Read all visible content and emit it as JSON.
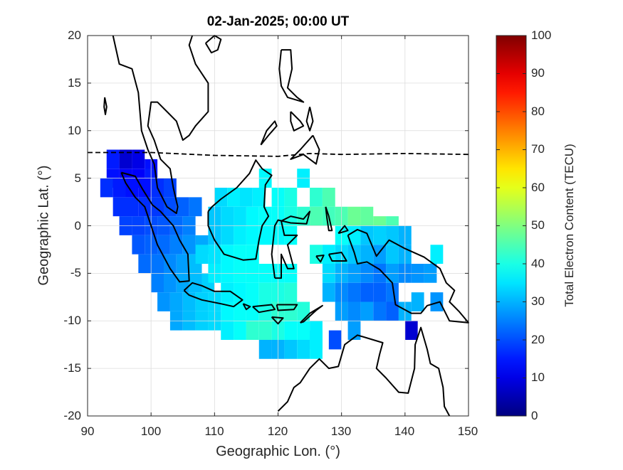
{
  "title": "02-Jan-2025; 00:00 UT",
  "xlabel": "Geographic Lon. (°)",
  "ylabel": "Geographic Lat. (°)",
  "colorbar": {
    "label": "Total Electron Content (TECU)",
    "ticks": [
      "0",
      "10",
      "20",
      "30",
      "40",
      "50",
      "60",
      "70",
      "80",
      "90",
      "100"
    ],
    "range": [
      0,
      100
    ],
    "colormap": "jet"
  },
  "x_ticks": [
    "90",
    "100",
    "110",
    "120",
    "130",
    "140",
    "150"
  ],
  "y_ticks": [
    "20",
    "15",
    "10",
    "5",
    "0",
    "-5",
    "-10",
    "-15",
    "-20"
  ],
  "map": {
    "lon_range": [
      90,
      150
    ],
    "lat_range": [
      -20,
      20
    ],
    "grid": true,
    "coastline_color": "#000000",
    "equator_line_style": "dashed"
  },
  "chart_data": {
    "type": "heatmap",
    "title": "02-Jan-2025; 00:00 UT",
    "xlabel": "Geographic Lon. (°)",
    "ylabel": "Geographic Lat. (°)",
    "xlim": [
      90,
      150
    ],
    "ylim": [
      -20,
      20
    ],
    "zlabel": "Total Electron Content (TECU)",
    "zlim": [
      0,
      100
    ],
    "cells": [
      [
        94,
        7,
        15
      ],
      [
        96,
        7,
        8
      ],
      [
        98,
        7,
        10
      ],
      [
        100,
        6,
        14
      ],
      [
        94,
        5,
        14
      ],
      [
        96,
        5,
        12
      ],
      [
        98,
        5,
        12
      ],
      [
        100,
        5,
        15
      ],
      [
        93,
        4,
        17
      ],
      [
        95,
        4,
        15
      ],
      [
        97,
        4,
        14
      ],
      [
        99,
        4,
        14
      ],
      [
        101,
        4,
        17
      ],
      [
        103,
        4,
        19
      ],
      [
        95,
        2,
        17
      ],
      [
        97,
        2,
        17
      ],
      [
        99,
        2,
        17
      ],
      [
        101,
        2,
        18
      ],
      [
        103,
        2,
        20
      ],
      [
        105,
        2,
        22
      ],
      [
        107,
        2,
        24
      ],
      [
        96,
        0,
        19
      ],
      [
        98,
        0,
        19
      ],
      [
        100,
        0,
        20
      ],
      [
        102,
        0,
        21
      ],
      [
        104,
        0,
        23
      ],
      [
        106,
        0,
        25
      ],
      [
        98,
        -2,
        21
      ],
      [
        100,
        -2,
        22
      ],
      [
        102,
        -2,
        23
      ],
      [
        104,
        -2,
        25
      ],
      [
        106,
        -2,
        27
      ],
      [
        108,
        -2,
        29
      ],
      [
        99,
        -4,
        23
      ],
      [
        101,
        -4,
        24
      ],
      [
        103,
        -4,
        26
      ],
      [
        105,
        -4,
        28
      ],
      [
        107,
        -4,
        31
      ],
      [
        101,
        -6,
        25
      ],
      [
        103,
        -6,
        27
      ],
      [
        105,
        -6,
        29
      ],
      [
        107,
        -6,
        31
      ],
      [
        109,
        -6,
        33
      ],
      [
        102,
        -8,
        27
      ],
      [
        104,
        -8,
        29
      ],
      [
        106,
        -8,
        31
      ],
      [
        108,
        -8,
        33
      ],
      [
        110,
        -8,
        34
      ],
      [
        104,
        -10,
        29
      ],
      [
        106,
        -10,
        31
      ],
      [
        108,
        -10,
        33
      ],
      [
        110,
        -10,
        34
      ],
      [
        111,
        3,
        34
      ],
      [
        113,
        3,
        36
      ],
      [
        115,
        3,
        35
      ],
      [
        117,
        3,
        36
      ],
      [
        118,
        5,
        37
      ],
      [
        120,
        3,
        38
      ],
      [
        122,
        3,
        40
      ],
      [
        110,
        1,
        32
      ],
      [
        112,
        1,
        34
      ],
      [
        114,
        1,
        35
      ],
      [
        116,
        1,
        37
      ],
      [
        118,
        1,
        38
      ],
      [
        120,
        1,
        38
      ],
      [
        122,
        1,
        40
      ],
      [
        124,
        1,
        42
      ],
      [
        110,
        -1,
        32
      ],
      [
        112,
        -1,
        34
      ],
      [
        114,
        -1,
        36
      ],
      [
        116,
        -1,
        37
      ],
      [
        118,
        -1,
        37
      ],
      [
        120,
        -1,
        37
      ],
      [
        122,
        -1,
        38
      ],
      [
        108,
        -3,
        34
      ],
      [
        110,
        -3,
        35
      ],
      [
        112,
        -3,
        37
      ],
      [
        114,
        -3,
        38
      ],
      [
        116,
        -3,
        38
      ],
      [
        110,
        -5,
        36
      ],
      [
        112,
        -5,
        37
      ],
      [
        114,
        -5,
        38
      ],
      [
        116,
        -5,
        38
      ],
      [
        118,
        -5,
        38
      ],
      [
        120,
        -5,
        38
      ],
      [
        122,
        -5,
        38
      ],
      [
        112,
        -7,
        36
      ],
      [
        114,
        -7,
        37
      ],
      [
        116,
        -7,
        38
      ],
      [
        118,
        -7,
        40
      ],
      [
        120,
        -7,
        40
      ],
      [
        122,
        -7,
        41
      ],
      [
        112,
        -9,
        37
      ],
      [
        114,
        -9,
        38
      ],
      [
        116,
        -9,
        38
      ],
      [
        118,
        -9,
        40
      ],
      [
        120,
        -9,
        42
      ],
      [
        122,
        -9,
        42
      ],
      [
        124,
        -9,
        41
      ],
      [
        112,
        -11,
        36
      ],
      [
        114,
        -11,
        38
      ],
      [
        116,
        -11,
        42
      ],
      [
        118,
        -11,
        42
      ],
      [
        120,
        -11,
        40
      ],
      [
        122,
        -11,
        38
      ],
      [
        124,
        -11,
        38
      ],
      [
        126,
        -11,
        36
      ],
      [
        118,
        -13,
        30
      ],
      [
        120,
        -13,
        30
      ],
      [
        122,
        -13,
        32
      ],
      [
        124,
        -13,
        34
      ],
      [
        126,
        -13,
        36
      ],
      [
        124,
        5,
        36
      ],
      [
        126,
        3,
        42
      ],
      [
        128,
        3,
        45
      ],
      [
        130,
        1,
        45
      ],
      [
        132,
        1,
        48
      ],
      [
        134,
        1,
        47
      ],
      [
        136,
        0,
        48
      ],
      [
        138,
        0,
        45
      ],
      [
        126,
        1,
        45
      ],
      [
        128,
        1,
        44
      ],
      [
        130,
        -1,
        38
      ],
      [
        132,
        -1,
        36
      ],
      [
        134,
        -1,
        32
      ],
      [
        136,
        -1,
        33
      ],
      [
        138,
        -1,
        32
      ],
      [
        140,
        -1,
        30
      ],
      [
        126,
        -3,
        40
      ],
      [
        128,
        -3,
        36
      ],
      [
        130,
        -3,
        34
      ],
      [
        132,
        -3,
        32
      ],
      [
        134,
        -3,
        30
      ],
      [
        136,
        -3,
        28
      ],
      [
        138,
        -3,
        32
      ],
      [
        140,
        -3,
        30
      ],
      [
        128,
        -5,
        34
      ],
      [
        130,
        -5,
        30
      ],
      [
        132,
        -5,
        28
      ],
      [
        134,
        -5,
        26
      ],
      [
        136,
        -5,
        24
      ],
      [
        138,
        -5,
        28
      ],
      [
        140,
        -5,
        26
      ],
      [
        128,
        -7,
        30
      ],
      [
        130,
        -7,
        26
      ],
      [
        132,
        -7,
        24
      ],
      [
        134,
        -7,
        22
      ],
      [
        136,
        -7,
        22
      ],
      [
        138,
        -7,
        24
      ],
      [
        130,
        -9,
        28
      ],
      [
        132,
        -9,
        26
      ],
      [
        134,
        -9,
        28
      ],
      [
        136,
        -9,
        24
      ],
      [
        138,
        -9,
        22
      ],
      [
        140,
        -9,
        30
      ],
      [
        132,
        -11,
        28
      ],
      [
        141,
        -11,
        8
      ],
      [
        129,
        -12,
        20
      ],
      [
        126,
        -12,
        36
      ],
      [
        142,
        -5,
        27
      ],
      [
        144,
        -5,
        28
      ],
      [
        145,
        -3,
        36
      ],
      [
        142,
        -8,
        30
      ],
      [
        145,
        -8,
        27
      ]
    ]
  }
}
